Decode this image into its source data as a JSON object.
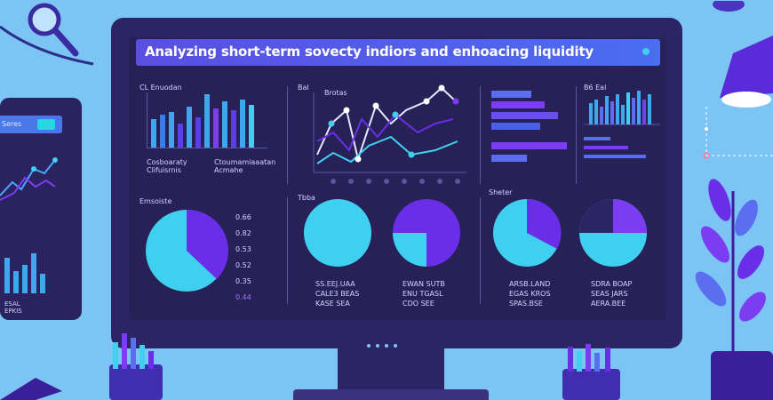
{
  "banner": {
    "title": "Analyzing short-term sovecty indiors and enhoacing liquidity"
  },
  "left_chart": {
    "title": "CL Enuodan",
    "caption_1": "Cosboaraty\nClifuisrnis",
    "caption_2": "Ctoumamiaaatan\nAcmahe"
  },
  "mid_chart": {
    "title": "Bal",
    "subtitle": "Brotas"
  },
  "right_chart": {
    "title": "B6 Eal"
  },
  "pie_section": {
    "title_1": "Emsoiste",
    "title_2": "Tbba",
    "title_3": "Sheter",
    "legend": [
      "0.66",
      "0.82",
      "0.53",
      "0.52",
      "0.35",
      "0.44"
    ]
  },
  "pie_captions": [
    [
      "SS.EEJ.UAA",
      "CALE3 BEAS",
      "KASE SEA"
    ],
    [
      "EWAN SUTB",
      "ENU TGASL",
      "CDO SEE"
    ],
    [
      "ARSB.LAND",
      "EGAS KROS",
      "SPAS.BSE"
    ],
    [
      "SDRA BOAP",
      "SEAS JARS",
      "AERA.BEE"
    ]
  ],
  "tablet": {
    "label": "Seres",
    "footer": "ESAL\nEPKIS"
  },
  "colors": {
    "background": "#7cc4f4",
    "monitor": "#2d2466",
    "screen": "#272158",
    "cyan": "#3fd0f0",
    "purple": "#6a2ee8",
    "violet": "#7b3cf2"
  }
}
